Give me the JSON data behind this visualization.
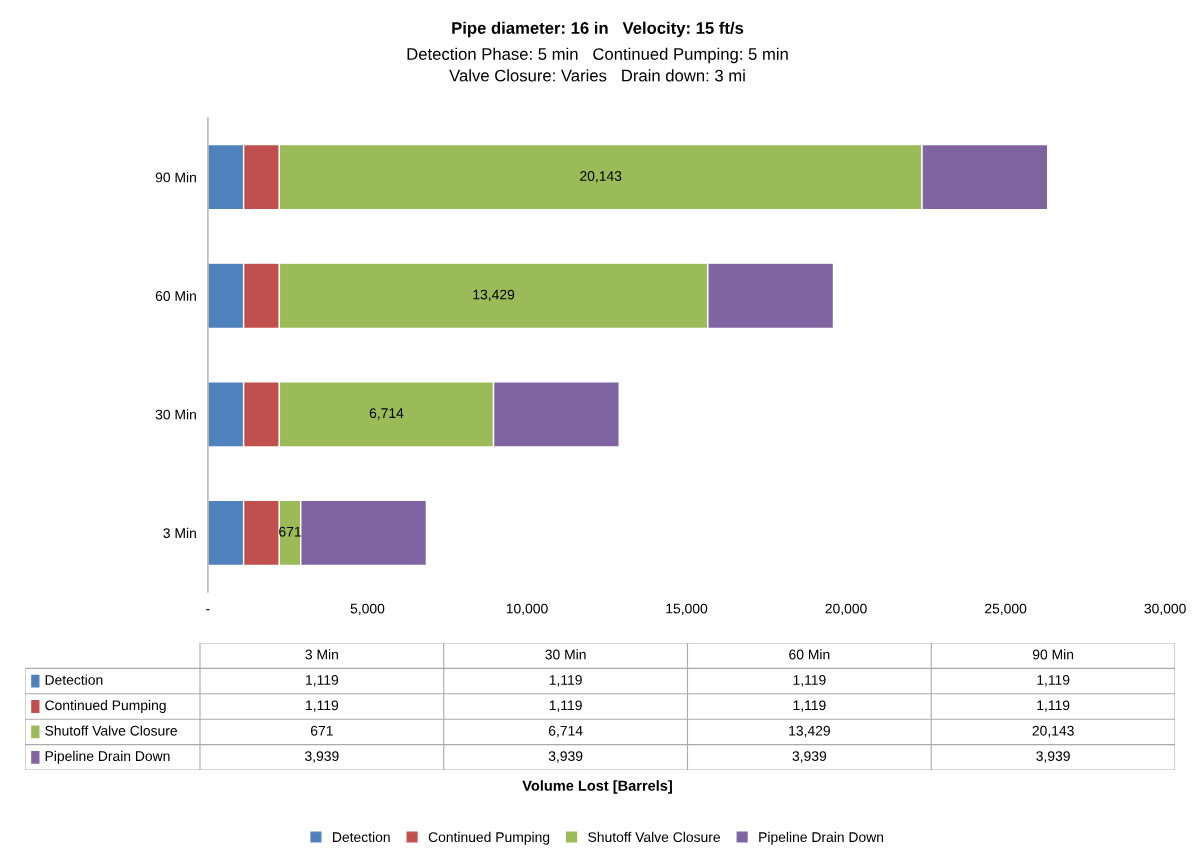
{
  "chart_data": [
    {
      "type": "bar",
      "orientation": "horizontal",
      "stacked": true,
      "title": "Pipe diameter: 16 in   Velocity: 15 ft/s",
      "subtitle": "Detection Phase: 5 min   Continued Pumping: 5 min\nValve Closure: Varies   Drain down: 3 mi",
      "annotations": [
        "Volume Lost [Barrels]"
      ],
      "categories": [
        "90 Min",
        "60 Min",
        "30 Min",
        "3 Min"
      ],
      "series": [
        {
          "name": "Detection",
          "color": "#4f81bd",
          "values": [
            1119,
            1119,
            1119,
            1119
          ]
        },
        {
          "name": "Continued Pumping",
          "color": "#c0504d",
          "values": [
            1119,
            1119,
            1119,
            1119
          ]
        },
        {
          "name": "Shutoff Valve Closure",
          "color": "#9bbb59",
          "values": [
            20143,
            13429,
            6714,
            671
          ],
          "value_labels": [
            "20,143",
            "13,429",
            "6,714",
            "671"
          ]
        },
        {
          "name": "Pipeline Drain Down",
          "color": "#8064a2",
          "values": [
            3939,
            3939,
            3939,
            3939
          ]
        }
      ],
      "xlim": [
        0,
        30000
      ],
      "xticks": [
        {
          "value": 0,
          "label": "-"
        },
        {
          "value": 5000,
          "label": "5,000"
        },
        {
          "value": 10000,
          "label": "10,000"
        },
        {
          "value": 15000,
          "label": "15,000"
        },
        {
          "value": 20000,
          "label": "20,000"
        },
        {
          "value": 25000,
          "label": "25,000"
        },
        {
          "value": 30000,
          "label": "30,000"
        }
      ],
      "legend": "bottom",
      "grid": false
    },
    {
      "type": "other",
      "categories": [
        "3 Min",
        "30 Min",
        "60 Min",
        "90 Min"
      ],
      "series": [
        {
          "name": "Detection",
          "color": "#4f81bd",
          "values": [
            1119,
            1119,
            1119,
            1119
          ],
          "value_labels": [
            "1,119",
            "1,119",
            "1,119",
            "1,119"
          ]
        },
        {
          "name": "Continued Pumping",
          "color": "#c0504d",
          "values": [
            1119,
            1119,
            1119,
            1119
          ],
          "value_labels": [
            "1,119",
            "1,119",
            "1,119",
            "1,119"
          ]
        },
        {
          "name": "Shutoff Valve Closure",
          "color": "#9bbb59",
          "values": [
            671,
            6714,
            13429,
            20143
          ],
          "value_labels": [
            "671",
            "6,714",
            "13,429",
            "20,143"
          ]
        },
        {
          "name": "Pipeline Drain Down",
          "color": "#8064a2",
          "values": [
            3939,
            3939,
            3939,
            3939
          ],
          "value_labels": [
            "3,939",
            "3,939",
            "3,939",
            "3,939"
          ]
        }
      ]
    }
  ]
}
